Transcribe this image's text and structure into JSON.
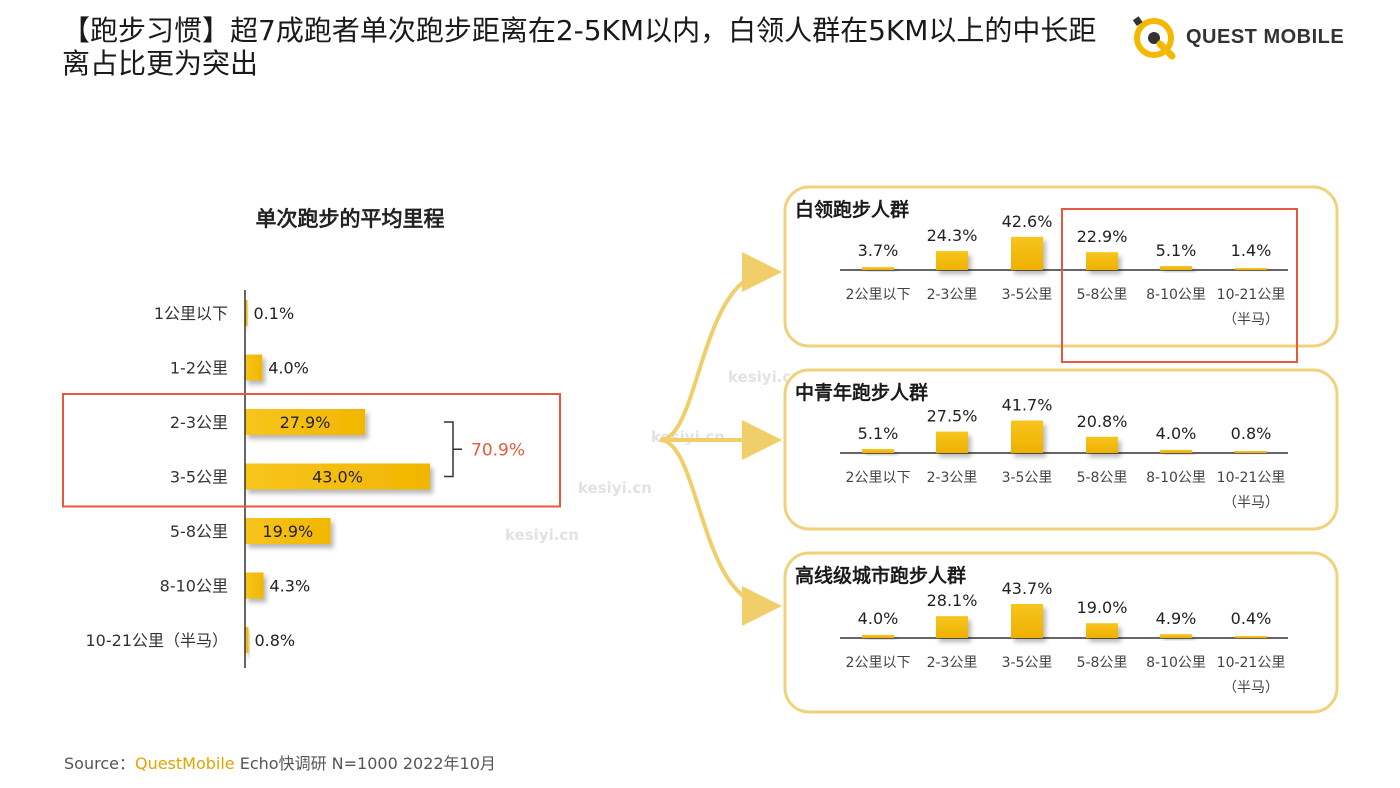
{
  "title": "【跑步习惯】超7成跑者单次跑步距离在2-5KM以内，白领人群在5KM以上的中长距离占比更为突出",
  "logo": {
    "text": "QUEST MOBILE",
    "icon": "questmobile-logo-icon"
  },
  "watermark": "kesiyi.cn",
  "source": {
    "prefix": "Source：",
    "brand": "QuestMobile",
    "rest": "Echo快调研 N=1000 2022年10月"
  },
  "colors": {
    "bar": "#f5c518",
    "bar_dark": "#e8a800",
    "highlight": "#e8593c",
    "panel_border": "#f0d27a",
    "axis": "#333333"
  },
  "chart_data": [
    {
      "type": "bar",
      "orientation": "horizontal",
      "title": "单次跑步的平均里程",
      "categories": [
        "1公里以下",
        "1-2公里",
        "2-3公里",
        "3-5公里",
        "5-8公里",
        "8-10公里",
        "10-21公里（半马）"
      ],
      "values": [
        0.1,
        4.0,
        27.9,
        43.0,
        19.9,
        4.3,
        0.8
      ],
      "value_labels": [
        "0.1%",
        "4.0%",
        "27.9%",
        "43.0%",
        "19.9%",
        "4.3%",
        "0.8%"
      ],
      "annotation": {
        "text": "70.9%",
        "categories": [
          "2-3公里",
          "3-5公里"
        ]
      }
    },
    {
      "type": "bar",
      "title": "白领跑步人群",
      "categories": [
        "2公里以下",
        "2-3公里",
        "3-5公里",
        "5-8公里",
        "8-10公里",
        "10-21公里（半马）"
      ],
      "values": [
        3.7,
        24.3,
        42.6,
        22.9,
        5.1,
        1.4
      ],
      "value_labels": [
        "3.7%",
        "24.3%",
        "42.6%",
        "22.9%",
        "5.1%",
        "1.4%"
      ],
      "highlight": [
        "5-8公里",
        "8-10公里",
        "10-21公里（半马）"
      ]
    },
    {
      "type": "bar",
      "title": "中青年跑步人群",
      "categories": [
        "2公里以下",
        "2-3公里",
        "3-5公里",
        "5-8公里",
        "8-10公里",
        "10-21公里（半马）"
      ],
      "values": [
        5.1,
        27.5,
        41.7,
        20.8,
        4.0,
        0.8
      ],
      "value_labels": [
        "5.1%",
        "27.5%",
        "41.7%",
        "20.8%",
        "4.0%",
        "0.8%"
      ]
    },
    {
      "type": "bar",
      "title": "高线级城市跑步人群",
      "categories": [
        "2公里以下",
        "2-3公里",
        "3-5公里",
        "5-8公里",
        "8-10公里",
        "10-21公里（半马）"
      ],
      "values": [
        4.0,
        28.1,
        43.7,
        19.0,
        4.9,
        0.4
      ],
      "value_labels": [
        "4.0%",
        "28.1%",
        "43.7%",
        "19.0%",
        "4.9%",
        "0.4%"
      ]
    }
  ]
}
